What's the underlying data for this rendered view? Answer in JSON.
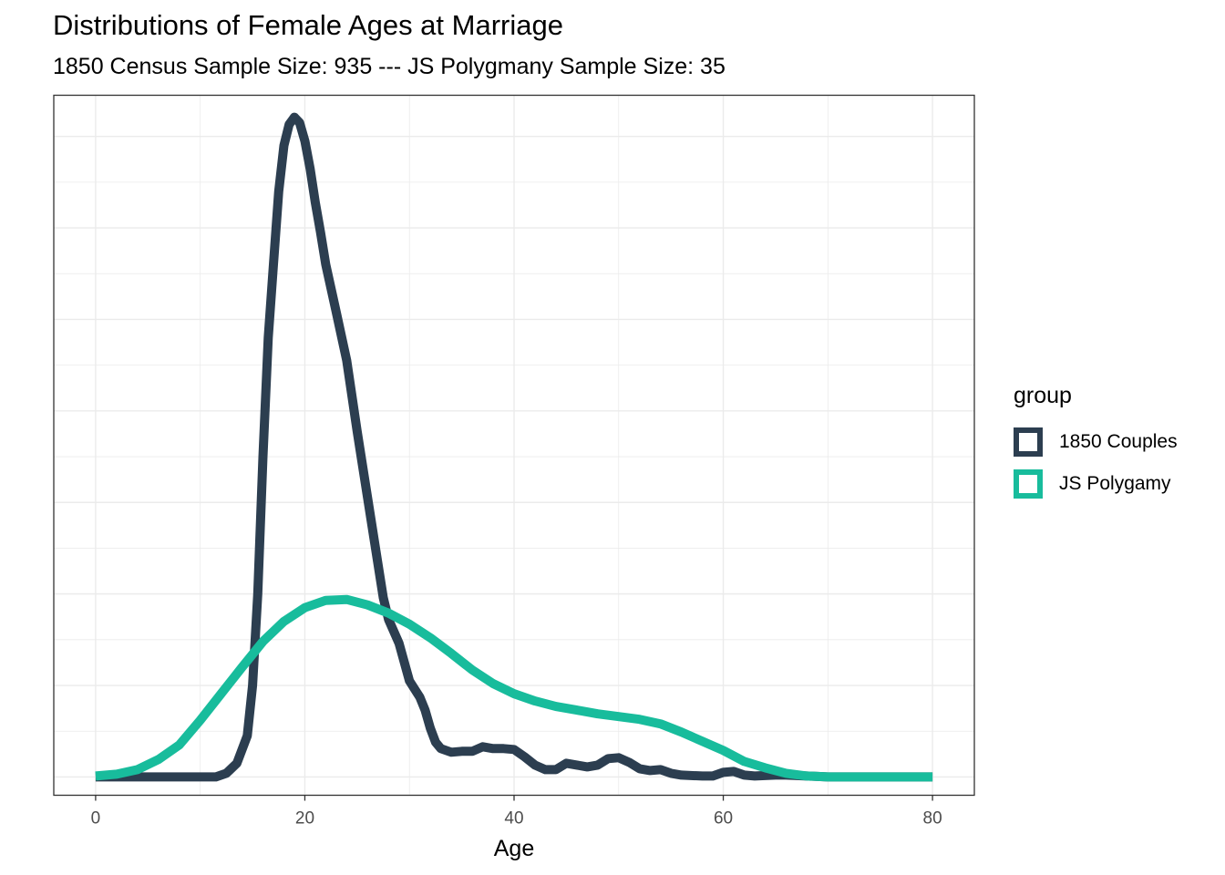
{
  "chart_data": {
    "type": "line",
    "title": "Distributions of Female Ages at Marriage",
    "subtitle": "1850 Census Sample Size: 935 --- JS Polygmany Sample Size: 35",
    "xlabel": "Age",
    "ylabel": "",
    "xlim": [
      -4,
      84
    ],
    "ylim": [
      -0.002,
      0.0745
    ],
    "x_ticks": [
      0,
      20,
      40,
      60,
      80
    ],
    "grid": true,
    "legend": {
      "title": "group",
      "placement": "right"
    },
    "series": [
      {
        "name": "1850 Couples",
        "color": "#2c3e50",
        "points": [
          [
            0,
            0
          ],
          [
            5,
            0
          ],
          [
            10,
            0
          ],
          [
            11.5,
            0
          ],
          [
            12.5,
            0.0004
          ],
          [
            13.5,
            0.0015
          ],
          [
            14.5,
            0.0045
          ],
          [
            15,
            0.01
          ],
          [
            15.5,
            0.02
          ],
          [
            16,
            0.035
          ],
          [
            16.5,
            0.048
          ],
          [
            17,
            0.056
          ],
          [
            17.5,
            0.064
          ],
          [
            18,
            0.069
          ],
          [
            18.5,
            0.0713
          ],
          [
            19,
            0.0721
          ],
          [
            19.5,
            0.0715
          ],
          [
            20,
            0.0695
          ],
          [
            20.5,
            0.0665
          ],
          [
            21,
            0.0628
          ],
          [
            21.5,
            0.0595
          ],
          [
            22,
            0.056
          ],
          [
            23,
            0.0508
          ],
          [
            24,
            0.0455
          ],
          [
            25,
            0.0378
          ],
          [
            26,
            0.0305
          ],
          [
            27,
            0.0232
          ],
          [
            27.5,
            0.0196
          ],
          [
            28,
            0.0172
          ],
          [
            29,
            0.0146
          ],
          [
            30,
            0.0105
          ],
          [
            31,
            0.0087
          ],
          [
            31.5,
            0.0073
          ],
          [
            32,
            0.0053
          ],
          [
            32.5,
            0.0038
          ],
          [
            33,
            0.0031
          ],
          [
            34,
            0.0027
          ],
          [
            35,
            0.0028
          ],
          [
            36,
            0.0028
          ],
          [
            37,
            0.0033
          ],
          [
            38,
            0.0031
          ],
          [
            39,
            0.0031
          ],
          [
            40,
            0.003
          ],
          [
            41,
            0.0022
          ],
          [
            42,
            0.0013
          ],
          [
            43,
            0.0008
          ],
          [
            44,
            0.0008
          ],
          [
            45,
            0.0015
          ],
          [
            46,
            0.0013
          ],
          [
            47,
            0.0011
          ],
          [
            48,
            0.0013
          ],
          [
            49,
            0.002
          ],
          [
            50,
            0.0021
          ],
          [
            51,
            0.0016
          ],
          [
            52,
            0.0009
          ],
          [
            53,
            0.0007
          ],
          [
            54,
            0.0008
          ],
          [
            55,
            0.0004
          ],
          [
            56,
            0.0002
          ],
          [
            58,
            0.0001
          ],
          [
            59,
            0.0001
          ],
          [
            60,
            0.0005
          ],
          [
            61,
            0.0006
          ],
          [
            62,
            0.0002
          ],
          [
            63,
            0.0001
          ],
          [
            65,
            0.0002
          ],
          [
            66,
            0.0002
          ],
          [
            68,
            0.0001
          ],
          [
            70,
            0.0
          ],
          [
            72,
            0
          ],
          [
            80,
            0
          ]
        ]
      },
      {
        "name": "JS Polygamy",
        "color": "#18bc9c",
        "points": [
          [
            0,
            0.0001
          ],
          [
            2,
            0.0003
          ],
          [
            4,
            0.0008
          ],
          [
            6,
            0.0019
          ],
          [
            8,
            0.0035
          ],
          [
            10,
            0.0062
          ],
          [
            12,
            0.0091
          ],
          [
            14,
            0.012
          ],
          [
            16,
            0.0148
          ],
          [
            18,
            0.017
          ],
          [
            20,
            0.0185
          ],
          [
            22,
            0.0193
          ],
          [
            24,
            0.0194
          ],
          [
            26,
            0.0188
          ],
          [
            28,
            0.0179
          ],
          [
            30,
            0.0167
          ],
          [
            32,
            0.0152
          ],
          [
            34,
            0.0135
          ],
          [
            36,
            0.0117
          ],
          [
            38,
            0.0102
          ],
          [
            40,
            0.0091
          ],
          [
            42,
            0.0083
          ],
          [
            44,
            0.0077
          ],
          [
            46,
            0.0073
          ],
          [
            48,
            0.0069
          ],
          [
            50,
            0.0066
          ],
          [
            52,
            0.0063
          ],
          [
            54,
            0.0058
          ],
          [
            56,
            0.0049
          ],
          [
            58,
            0.0039
          ],
          [
            60,
            0.0029
          ],
          [
            62,
            0.0017
          ],
          [
            64,
            0.001
          ],
          [
            66,
            0.0004
          ],
          [
            68,
            0.0001
          ],
          [
            70,
            0.0
          ],
          [
            72,
            0
          ],
          [
            76,
            0
          ],
          [
            80,
            0
          ]
        ]
      }
    ]
  }
}
